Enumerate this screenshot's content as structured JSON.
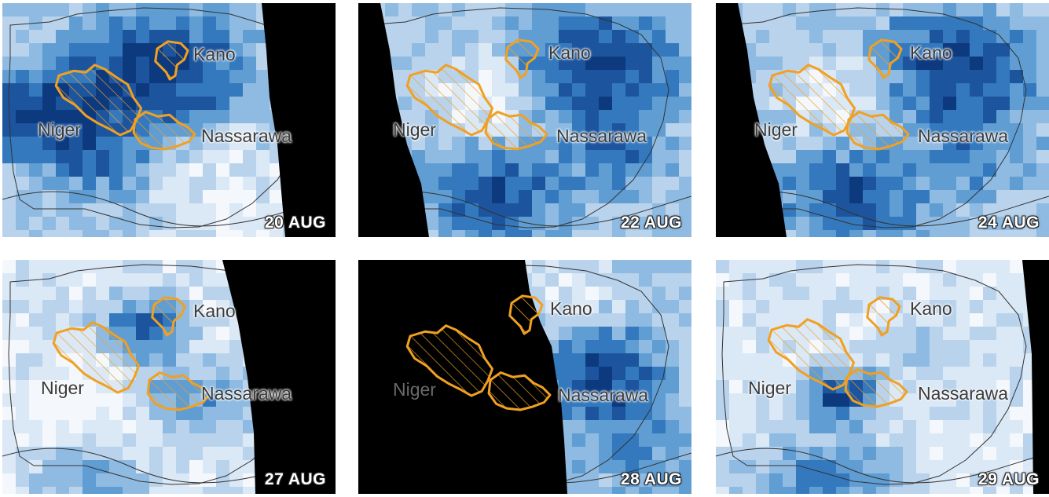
{
  "panels": [
    {
      "date": "20 AUG",
      "labels": {
        "kano": "Kano",
        "niger": "Niger",
        "nassarawa": "Nassarawa"
      },
      "mask": "right",
      "mask_color": "#000000",
      "intensity": "high-north"
    },
    {
      "date": "22 AUG",
      "labels": {
        "kano": "Kano",
        "niger": "Niger",
        "nassarawa": "Nassarawa"
      },
      "mask": "left",
      "mask_color": "#000000",
      "intensity": "high-east"
    },
    {
      "date": "24 AUG",
      "labels": {
        "kano": "Kano",
        "niger": "Niger",
        "nassarawa": "Nassarawa"
      },
      "mask": "left",
      "mask_color": "#000000",
      "intensity": "high-east"
    },
    {
      "date": "27 AUG",
      "labels": {
        "kano": "Kano",
        "niger": "Niger",
        "nassarawa": "Nassarawa"
      },
      "mask": "right",
      "mask_color": "#000000",
      "intensity": "low"
    },
    {
      "date": "28 AUG",
      "labels": {
        "kano": "Kano",
        "niger": "Niger",
        "nassarawa": "Nassarawa"
      },
      "mask": "big-left",
      "mask_color": "#000000",
      "intensity": "mid-east"
    },
    {
      "date": "29 AUG",
      "labels": {
        "kano": "Kano",
        "niger": "Niger",
        "nassarawa": "Nassarawa"
      },
      "mask": "right-thin",
      "mask_color": "#000000",
      "intensity": "low-south"
    }
  ],
  "colors": {
    "outline": "#f0a022",
    "hatch": "#f0a022",
    "country_border": "#333333",
    "scale": [
      "#f4f8fc",
      "#dbe8f5",
      "#b9d3ec",
      "#8fbbe2",
      "#5f9dd3",
      "#3479bd",
      "#1c559e",
      "#0d3a7e"
    ]
  }
}
